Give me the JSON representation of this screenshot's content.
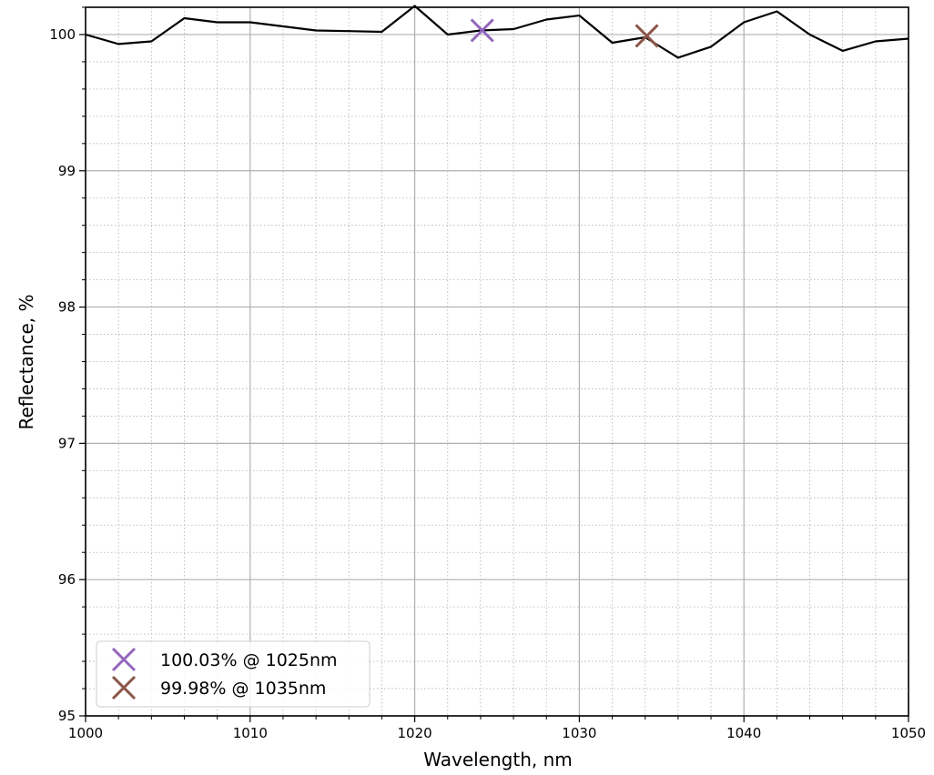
{
  "chart_data": {
    "type": "line",
    "xlabel": "Wavelength, nm",
    "ylabel": "Reflectance, %",
    "xlim": [
      1000,
      1050
    ],
    "ylim": [
      95,
      100.2
    ],
    "x_ticks": [
      1000,
      1010,
      1020,
      1030,
      1040,
      1050
    ],
    "y_ticks": [
      95,
      96,
      97,
      98,
      99,
      100
    ],
    "grid": true,
    "minor_grid": true,
    "series": [
      {
        "color": "#000000",
        "x": [
          1000,
          1002,
          1004,
          1006,
          1008,
          1010,
          1012,
          1014,
          1016,
          1018,
          1020,
          1022,
          1024,
          1026,
          1028,
          1030,
          1032,
          1034,
          1036,
          1038,
          1040,
          1042,
          1044,
          1046,
          1048,
          1050
        ],
        "y": [
          100.0,
          99.93,
          99.95,
          100.12,
          100.09,
          100.09,
          100.06,
          100.03,
          100.025,
          100.02,
          100.21,
          100.0,
          100.03,
          100.04,
          100.11,
          100.14,
          99.94,
          99.98,
          99.83,
          99.91,
          100.09,
          100.17,
          100.0,
          99.88,
          99.95,
          99.97
        ]
      }
    ],
    "markers": [
      {
        "label": "100.03% @ 1025nm",
        "x": 1024.1,
        "y": 100.03,
        "color": "#9467bd",
        "shape": "x"
      },
      {
        "label": "99.98% @ 1035nm",
        "x": 1034.1,
        "y": 99.99,
        "color": "#8c564b",
        "shape": "x"
      }
    ],
    "legend_position": "lower-left"
  }
}
